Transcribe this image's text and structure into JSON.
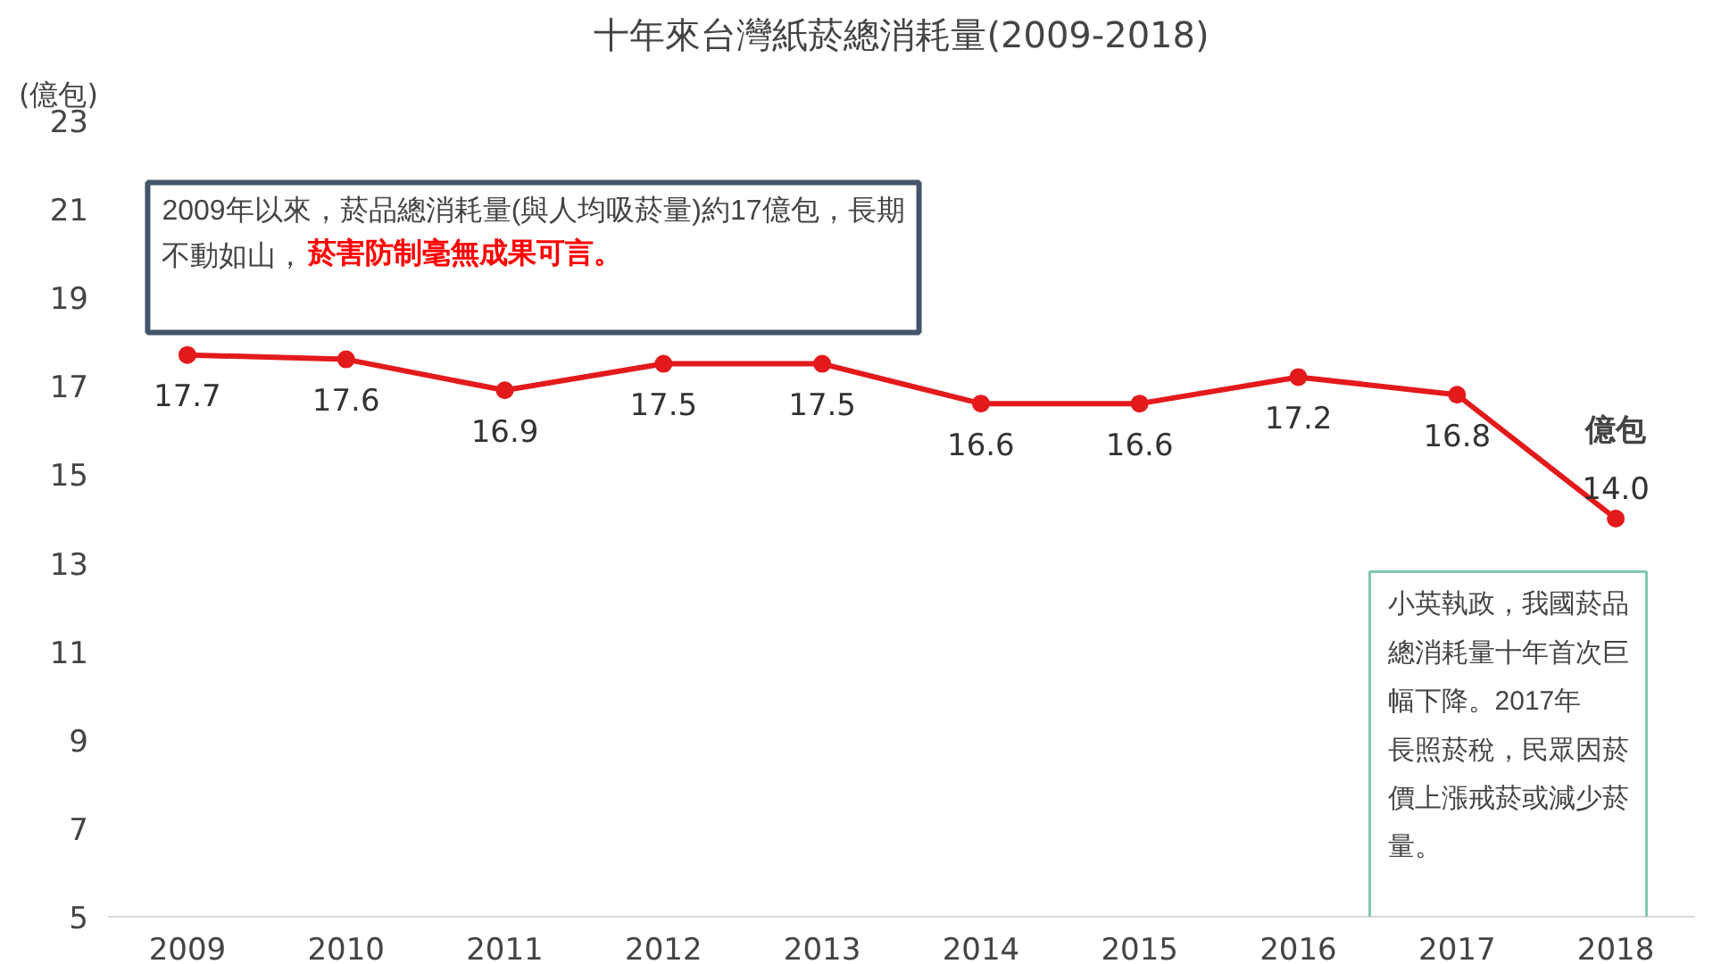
{
  "chart_data": {
    "type": "line",
    "title": "十年來台灣紙菸總消耗量(2009-2018)",
    "ylabel": "(億包)",
    "categories": [
      "2009",
      "2010",
      "2011",
      "2012",
      "2013",
      "2014",
      "2015",
      "2016",
      "2017",
      "2018"
    ],
    "series": [
      {
        "color": "#e31a1c",
        "values": [
          17.7,
          17.6,
          16.9,
          17.5,
          17.5,
          16.6,
          16.6,
          17.2,
          16.8,
          14.0
        ],
        "value_labels": [
          "17.7",
          "17.6",
          "16.9",
          "17.5",
          "17.5",
          "16.6",
          "16.6",
          "17.2",
          "16.8",
          "14.0"
        ]
      }
    ],
    "ylim": [
      5,
      23
    ],
    "yticks": [
      5,
      7,
      9,
      11,
      13,
      15,
      17,
      19,
      21,
      23
    ],
    "grid": false,
    "marker": "circle",
    "line_style": "solid",
    "annotations": [
      "2009年以來，菸品總消耗量(與人均吸菸量)約17億包，長期不動如山，",
      "菸害防制毫無成果可言。",
      "小英執政，我國菸品總消耗量十年首次巨幅下降。2017年長照菸稅，民眾因菸價上漲戒菸或減少菸量。",
      "億包"
    ]
  }
}
